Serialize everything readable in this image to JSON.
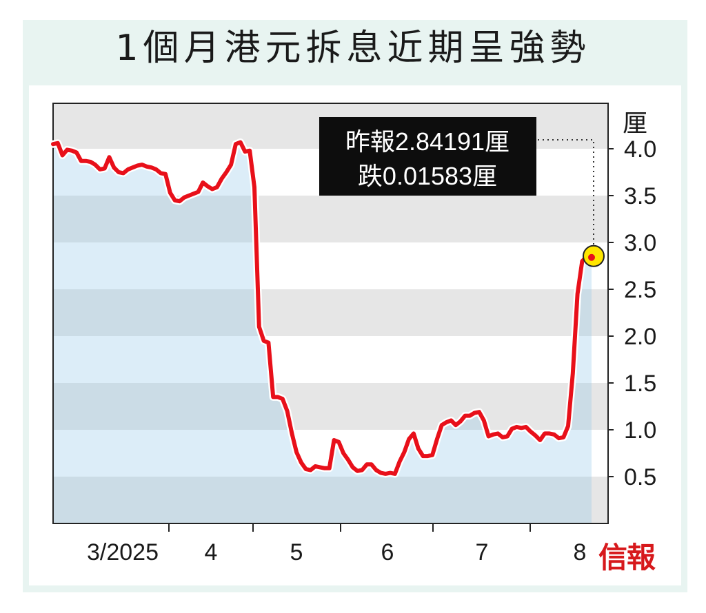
{
  "title": "1個月港元拆息近期呈強勢",
  "logo": "信報",
  "annotation": {
    "line1": "昨報2.84191厘",
    "line2": "跌0.01583厘"
  },
  "chart_data": {
    "type": "line",
    "title": "1個月港元拆息近期呈強勢",
    "y_unit": "厘",
    "ylim": [
      0,
      4.5
    ],
    "yticks": [
      0.5,
      1.0,
      1.5,
      2.0,
      2.5,
      3.0,
      3.5,
      4.0
    ],
    "ytick_labels": [
      "0.5",
      "1.0",
      "1.5",
      "2.0",
      "2.5",
      "3.0",
      "3.5",
      "4.0"
    ],
    "month_labels": [
      "3/2025",
      "4",
      "5",
      "6",
      "7",
      "8"
    ],
    "grid": "horizontal bands",
    "colors": {
      "line": "#e8101a",
      "area": "#dcedf8",
      "highlight": "#ffe600"
    },
    "series": [
      {
        "values": [
          4.05,
          4.06,
          3.93,
          3.99,
          3.98,
          3.96,
          3.87,
          3.87,
          3.86,
          3.83,
          3.78,
          3.79,
          3.91,
          3.8,
          3.75,
          3.74,
          3.78,
          3.8,
          3.82,
          3.83,
          3.81,
          3.8,
          3.78,
          3.74,
          3.73,
          3.53,
          3.45,
          3.44,
          3.48,
          3.5,
          3.52,
          3.54,
          3.64,
          3.6,
          3.57,
          3.59,
          3.68,
          3.75,
          3.83,
          4.05,
          4.07,
          3.97,
          3.98,
          3.59,
          2.1,
          1.95,
          1.93,
          1.35,
          1.35,
          1.33,
          1.2,
          0.96,
          0.76,
          0.65,
          0.58,
          0.57,
          0.61,
          0.6,
          0.59,
          0.59,
          0.89,
          0.87,
          0.75,
          0.68,
          0.6,
          0.56,
          0.57,
          0.63,
          0.63,
          0.57,
          0.54,
          0.53,
          0.54,
          0.53,
          0.66,
          0.76,
          0.9,
          0.96,
          0.8,
          0.72,
          0.72,
          0.73,
          0.9,
          1.05,
          1.08,
          1.1,
          1.05,
          1.09,
          1.15,
          1.15,
          1.18,
          1.19,
          1.1,
          0.93,
          0.95,
          0.96,
          0.92,
          0.93,
          1.01,
          1.03,
          1.02,
          1.03,
          0.98,
          0.94,
          0.89,
          0.96,
          0.96,
          0.95,
          0.91,
          0.92,
          1.04,
          1.6,
          2.45,
          2.8,
          2.85,
          2.84
        ]
      }
    ]
  }
}
